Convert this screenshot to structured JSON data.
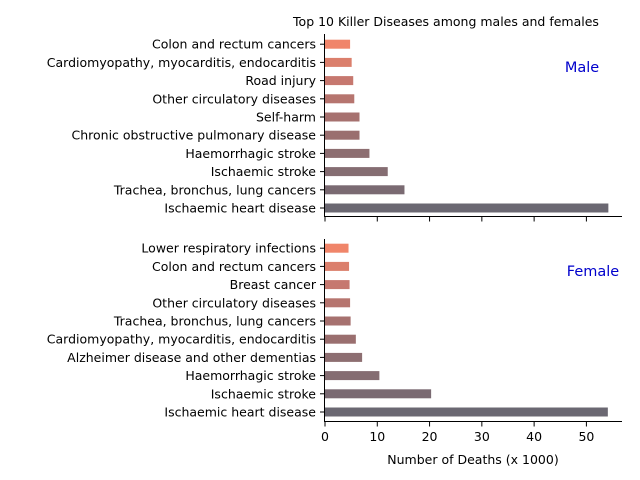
{
  "chart_data": [
    {
      "type": "bar",
      "orientation": "horizontal",
      "title": "Top 10 Killer Diseases among males and females",
      "panel_label": "Male",
      "categories": [
        "Ischaemic heart disease",
        "Trachea, bronchus, lung cancers",
        "Ischaemic stroke",
        "Haemorrhagic stroke",
        "Chronic obstructive pulmonary disease",
        "Self-harm",
        "Other circulatory diseases",
        "Road injury",
        "Cardiomyopathy, myocarditis, endocarditis",
        "Colon and rectum cancers"
      ],
      "values": [
        54.2,
        15.2,
        12.0,
        8.5,
        6.6,
        6.6,
        5.6,
        5.4,
        5.1,
        4.8
      ],
      "xlim": [
        0,
        57
      ],
      "xticks": [
        0,
        10,
        20,
        30,
        40,
        50
      ],
      "xlabel": "",
      "ylabel": "",
      "grid": false,
      "colors": [
        "#6b6872",
        "#7a6a72",
        "#856d72",
        "#8d6e71",
        "#9a6f6f",
        "#a6716f",
        "#b6756f",
        "#c6786f",
        "#db7f6c",
        "#f0856a"
      ]
    },
    {
      "type": "bar",
      "orientation": "horizontal",
      "title": "",
      "panel_label": "Female",
      "categories": [
        "Ischaemic heart disease",
        "Ischaemic stroke",
        "Haemorrhagic stroke",
        "Alzheimer disease and other dementias",
        "Cardiomyopathy, myocarditis, endocarditis",
        "Trachea, bronchus, lung cancers",
        "Other circulatory diseases",
        "Breast cancer",
        "Colon and rectum cancers",
        "Lower respiratory infections"
      ],
      "values": [
        54.1,
        20.3,
        10.4,
        7.1,
        5.9,
        4.9,
        4.8,
        4.7,
        4.6,
        4.5
      ],
      "xlim": [
        0,
        57
      ],
      "xticks": [
        0,
        10,
        20,
        30,
        40,
        50
      ],
      "xlabel": "Number of Deaths (x 1000)",
      "ylabel": "",
      "grid": false,
      "colors": [
        "#6b6872",
        "#7a6a72",
        "#856d72",
        "#8d6e71",
        "#9a6f6f",
        "#a6716f",
        "#b6756f",
        "#c6786f",
        "#db7f6c",
        "#f0856a"
      ]
    }
  ],
  "label_color": "#0000cc"
}
